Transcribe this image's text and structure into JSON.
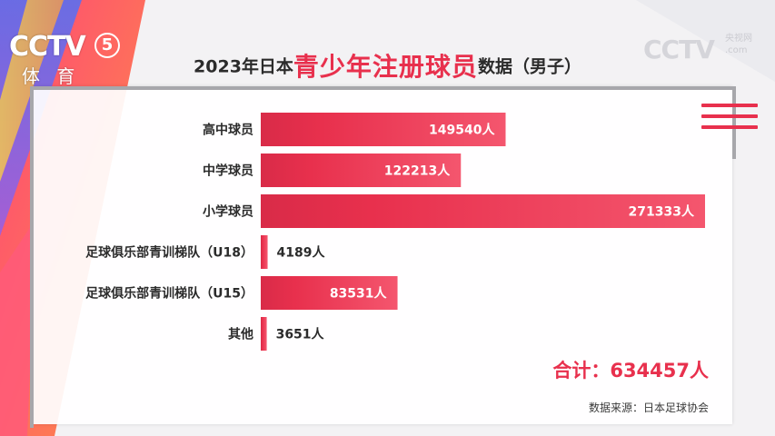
{
  "branding": {
    "channel_logo": "CCTV",
    "channel_number": "5",
    "channel_name": "体 育",
    "watermark_logo": "CCTV",
    "watermark_top": "央视网",
    "watermark_bottom": ".com"
  },
  "title": {
    "prefix": "2023年日本",
    "highlight": "青少年注册球员",
    "suffix": "数据（男子）"
  },
  "colors": {
    "accent": "#e8304d",
    "bar_light": "#f27a8a"
  },
  "chart_data": {
    "type": "bar",
    "orientation": "horizontal",
    "categories": [
      "高中球员",
      "中学球员",
      "小学球员",
      "足球俱乐部青训梯队（U18）",
      "足球俱乐部青训梯队（U15）",
      "其他"
    ],
    "values": [
      149540,
      122213,
      271333,
      4189,
      83531,
      3651
    ],
    "value_labels": [
      "149540人",
      "122213人",
      "271333人",
      "4189人",
      "83531人",
      "3651人"
    ],
    "xlim": [
      0,
      271333
    ],
    "grid": false,
    "title": "2023年日本青少年注册球员数据（男子）"
  },
  "total_label": "合计：634457人",
  "source_label": "数据来源：日本足球协会"
}
